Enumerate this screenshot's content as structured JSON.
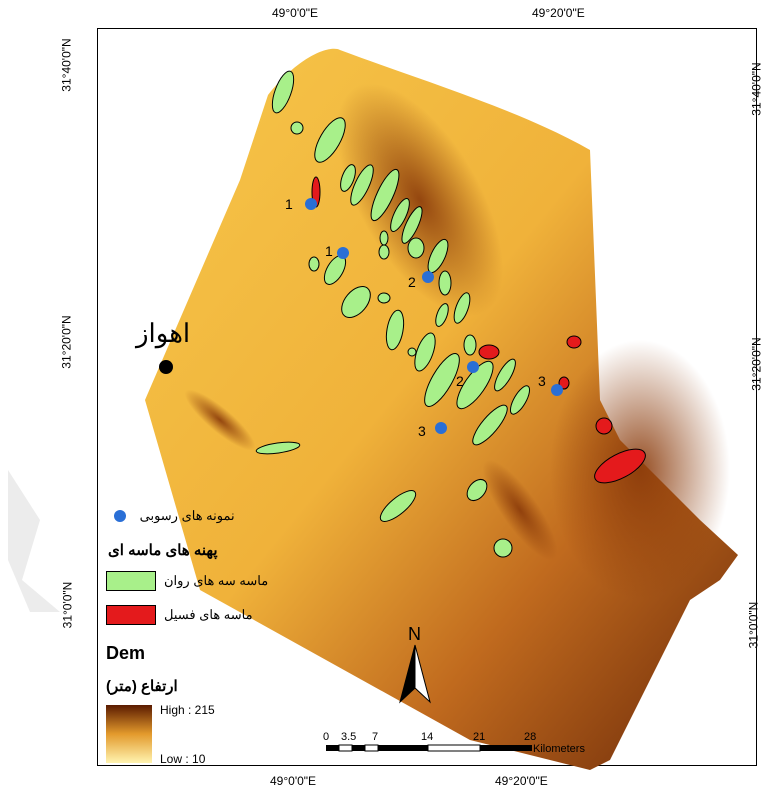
{
  "coordinates": {
    "top_left_label": "49°0'0\"E",
    "top_right_label": "49°20'0\"E",
    "bottom_left_label": "49°0'0\"E",
    "bottom_right_label": "49°20'0\"E",
    "left_top_label": "31°40'0\"N",
    "left_mid_label": "31°20'0\"N",
    "left_bottom_label": "31°0'0\"N",
    "right_top_label": "31°40'0\"N",
    "right_mid_label": "31°20'0\"N",
    "right_bottom_label": "31°0'0\"N"
  },
  "city_label": "اهواز",
  "sample_labels": [
    "1",
    "1",
    "2",
    "2",
    "3",
    "3"
  ],
  "legend": {
    "samples_label": "نمونه های رسوبی",
    "sand_areas_title": "پهنه های ماسه ای",
    "active_dunes_label": "ماسه سه های روان",
    "fossil_sands_label": "ماسه های فسیل",
    "dem_title": "Dem",
    "elevation_title": "ارتفاع (متر)",
    "high_label": "High : 215",
    "low_label": "Low : 10"
  },
  "north_arrow_label": "N",
  "scale_bar": {
    "ticks": [
      "0",
      "3.5",
      "7",
      "14",
      "21",
      "28"
    ],
    "unit": "Kilometers"
  },
  "colors": {
    "dem_high": "#5a1a00",
    "dem_low": "#fff4b0",
    "active_dunes": "#a8f08a",
    "fossil_sands": "#e41a1c",
    "sample_point": "#2a6fd6",
    "city_point": "#000000"
  }
}
